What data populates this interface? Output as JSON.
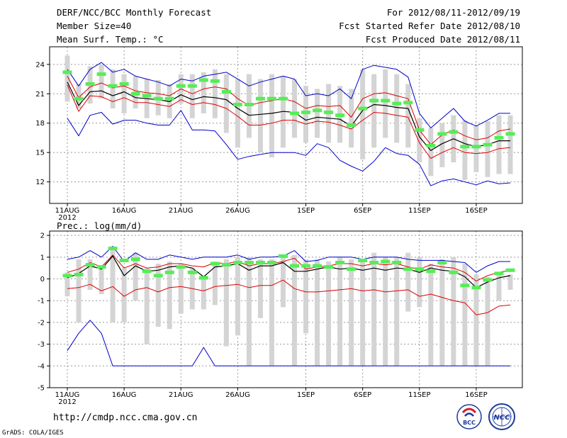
{
  "header": {
    "title": "DERF/NCC/BCC Monthly Forecast",
    "member_size": "Member Size=40",
    "variable": "Mean Surf. Temp.: °C",
    "forecast_period": "For 2012/08/11-2012/09/19",
    "refer_date": "Fcst Started Refer Date 2012/08/10",
    "produced_date": "Fcst Produced Date 2012/08/11"
  },
  "footer": {
    "url": "http://cmdp.ncc.cma.gov.cn",
    "grads_credit": "GrADS: COLA/IGES",
    "logo_left_text": "BCC",
    "logo_right_text": "NCC"
  },
  "colors": {
    "envelope": "#0000cc",
    "spread": "#dd0000",
    "mean": "#000000",
    "member_bar": "#d4d4d4",
    "green_marker": "#55ee55",
    "grid": "#999999"
  },
  "chart_data": [
    {
      "type": "line",
      "title": "Mean Surf. Temp.: °C",
      "xlabel": "",
      "ylabel": "°C",
      "ylim": [
        9.8,
        25.8
      ],
      "yticks": [
        24,
        21,
        18,
        15,
        12
      ],
      "x_tick_labels": [
        "11AUG",
        "16AUG",
        "21AUG",
        "26AUG",
        "1SEP",
        "6SEP",
        "11SEP",
        "16SEP"
      ],
      "x_tick_days": [
        0,
        5,
        10,
        15,
        21,
        26,
        31,
        36
      ],
      "year_label": "2012",
      "days": [
        0,
        1,
        2,
        3,
        4,
        5,
        6,
        7,
        8,
        9,
        10,
        11,
        12,
        13,
        14,
        15,
        16,
        17,
        18,
        19,
        20,
        21,
        22,
        23,
        24,
        25,
        26,
        27,
        28,
        29,
        30,
        31,
        32,
        33,
        34,
        35,
        36,
        37,
        38,
        39
      ],
      "series": [
        {
          "name": "max",
          "values": [
            23.5,
            21.8,
            23.5,
            24.2,
            23.2,
            23.5,
            22.8,
            22.5,
            22.2,
            21.8,
            22.5,
            22.3,
            22.8,
            23.0,
            23.2,
            22.5,
            21.8,
            22.2,
            22.5,
            22.8,
            22.5,
            20.8,
            21.0,
            20.8,
            21.5,
            20.5,
            23.5,
            23.9,
            23.7,
            23.5,
            22.7,
            19.0,
            17.5,
            18.5,
            19.5,
            18.2,
            17.7,
            18.3,
            19.0,
            19.0
          ]
        },
        {
          "name": "upper",
          "values": [
            22.8,
            20.6,
            21.7,
            22.1,
            21.6,
            21.8,
            21.3,
            21.1,
            21.0,
            20.8,
            21.5,
            21.0,
            21.5,
            21.7,
            21.5,
            20.5,
            19.8,
            20.1,
            20.3,
            20.5,
            20.2,
            19.5,
            19.8,
            19.7,
            19.8,
            18.6,
            20.5,
            21.0,
            21.1,
            20.8,
            20.5,
            17.3,
            15.8,
            16.8,
            17.3,
            16.7,
            16.3,
            16.5,
            17.2,
            17.4
          ]
        },
        {
          "name": "mean",
          "values": [
            22.2,
            19.8,
            21.2,
            21.3,
            20.8,
            21.2,
            20.6,
            20.5,
            20.4,
            20.2,
            20.9,
            20.4,
            20.7,
            20.6,
            20.4,
            19.5,
            18.8,
            18.9,
            19.0,
            19.2,
            19.1,
            18.3,
            18.6,
            18.5,
            18.4,
            17.7,
            19.3,
            19.9,
            19.8,
            19.6,
            19.5,
            16.6,
            15.2,
            15.9,
            16.4,
            15.9,
            15.6,
            15.8,
            16.2,
            16.2
          ]
        },
        {
          "name": "lower",
          "values": [
            21.9,
            19.2,
            20.8,
            20.7,
            20.2,
            20.6,
            20.1,
            20.1,
            19.9,
            19.7,
            20.4,
            19.9,
            20.1,
            19.9,
            19.5,
            18.7,
            17.8,
            17.8,
            18.0,
            18.3,
            18.3,
            17.9,
            18.2,
            18.1,
            17.8,
            17.4,
            18.3,
            19.1,
            19.0,
            18.8,
            18.6,
            16.0,
            14.4,
            15.0,
            15.5,
            15.0,
            14.9,
            15.0,
            15.4,
            15.5
          ]
        },
        {
          "name": "min",
          "values": [
            18.5,
            16.7,
            18.8,
            19.1,
            17.9,
            18.3,
            18.3,
            18.0,
            17.8,
            17.8,
            19.3,
            17.3,
            17.3,
            17.2,
            15.8,
            14.3,
            14.6,
            14.8,
            15.0,
            15.0,
            15.0,
            14.7,
            15.9,
            15.5,
            14.2,
            13.6,
            13.1,
            14.1,
            15.5,
            14.9,
            14.7,
            13.8,
            11.6,
            12.1,
            12.3,
            12.0,
            11.7,
            12.1,
            11.8,
            11.9
          ]
        }
      ],
      "member_ranges": [
        [
          20.2,
          24.9
        ],
        [
          19.5,
          22.0
        ],
        [
          20.0,
          23.8
        ],
        [
          20.5,
          24.0
        ],
        [
          19.5,
          23.5
        ],
        [
          19.0,
          23.0
        ],
        [
          19.5,
          22.8
        ],
        [
          18.5,
          22.5
        ],
        [
          18.8,
          22.4
        ],
        [
          18.5,
          22.0
        ],
        [
          20.0,
          23.0
        ],
        [
          18.5,
          23.0
        ],
        [
          19.0,
          23.2
        ],
        [
          18.5,
          23.5
        ],
        [
          17.0,
          23.0
        ],
        [
          15.5,
          22.5
        ],
        [
          16.5,
          23.0
        ],
        [
          15.0,
          22.5
        ],
        [
          14.5,
          23.0
        ],
        [
          15.5,
          22.8
        ],
        [
          16.5,
          22.5
        ],
        [
          16.0,
          21.8
        ],
        [
          16.5,
          21.5
        ],
        [
          16.0,
          22.0
        ],
        [
          16.0,
          21.8
        ],
        [
          15.5,
          21.5
        ],
        [
          14.3,
          23.5
        ],
        [
          15.5,
          23.0
        ],
        [
          16.5,
          23.5
        ],
        [
          16.0,
          23.0
        ],
        [
          15.5,
          22.0
        ],
        [
          14.0,
          18.5
        ],
        [
          12.6,
          17.5
        ],
        [
          13.5,
          18.0
        ],
        [
          14.0,
          18.8
        ],
        [
          12.2,
          18.3
        ],
        [
          13.0,
          17.7
        ],
        [
          12.5,
          18.2
        ],
        [
          12.8,
          18.8
        ],
        [
          12.8,
          18.8
        ]
      ],
      "markers": [
        23.2,
        20.5,
        22.0,
        23.0,
        21.8,
        22.0,
        21.0,
        20.8,
        20.5,
        20.5,
        21.8,
        21.8,
        22.4,
        22.3,
        21.2,
        19.9,
        19.9,
        20.5,
        20.5,
        20.5,
        19.0,
        19.1,
        19.3,
        19.1,
        18.8,
        17.8,
        19.5,
        20.3,
        20.3,
        20.0,
        20.1,
        17.3,
        15.7,
        16.9,
        17.1,
        15.6,
        15.6,
        15.8,
        16.5,
        16.9
      ]
    },
    {
      "type": "line",
      "title": "Prec.: log(mm/d)",
      "xlabel": "",
      "ylabel": "log(mm/d)",
      "ylim": [
        -5,
        2.2
      ],
      "yticks": [
        2,
        1,
        0,
        -1,
        -2,
        -3,
        -4,
        -5
      ],
      "x_tick_labels": [
        "11AUG",
        "16AUG",
        "21AUG",
        "26AUG",
        "1SEP",
        "6SEP",
        "11SEP",
        "16SEP"
      ],
      "x_tick_days": [
        0,
        5,
        10,
        15,
        21,
        26,
        31,
        36
      ],
      "year_label": "2012",
      "days": [
        0,
        1,
        2,
        3,
        4,
        5,
        6,
        7,
        8,
        9,
        10,
        11,
        12,
        13,
        14,
        15,
        16,
        17,
        18,
        19,
        20,
        21,
        22,
        23,
        24,
        25,
        26,
        27,
        28,
        29,
        30,
        31,
        32,
        33,
        34,
        35,
        36,
        37,
        38,
        39
      ],
      "series": [
        {
          "name": "max",
          "values": [
            0.9,
            1.0,
            1.3,
            1.0,
            1.5,
            0.8,
            1.2,
            0.9,
            0.9,
            1.1,
            1.0,
            0.9,
            1.0,
            1.0,
            1.0,
            1.1,
            0.9,
            1.0,
            1.0,
            1.05,
            1.3,
            0.8,
            0.85,
            1.0,
            1.0,
            1.0,
            0.9,
            1.0,
            1.0,
            1.0,
            0.9,
            0.85,
            0.85,
            0.85,
            0.8,
            0.75,
            0.3,
            0.6,
            0.8,
            0.8
          ]
        },
        {
          "name": "upper",
          "values": [
            0.3,
            0.45,
            0.75,
            0.55,
            1.1,
            0.5,
            0.7,
            0.5,
            0.55,
            0.7,
            0.7,
            0.6,
            0.55,
            0.75,
            0.7,
            0.8,
            0.6,
            0.7,
            0.7,
            0.8,
            0.95,
            0.45,
            0.55,
            0.6,
            0.7,
            0.7,
            0.6,
            0.7,
            0.65,
            0.7,
            0.55,
            0.45,
            0.65,
            0.55,
            0.5,
            0.3,
            -0.1,
            0.15,
            0.3,
            0.4
          ]
        },
        {
          "name": "mean",
          "values": [
            0.05,
            0.25,
            0.6,
            0.45,
            1.05,
            0.15,
            0.6,
            0.35,
            0.4,
            0.55,
            0.6,
            0.5,
            0.1,
            0.55,
            0.6,
            0.7,
            0.4,
            0.6,
            0.6,
            0.75,
            0.35,
            0.35,
            0.45,
            0.55,
            0.45,
            0.5,
            0.4,
            0.5,
            0.4,
            0.5,
            0.45,
            0.3,
            0.5,
            0.4,
            0.35,
            0.1,
            -0.4,
            -0.15,
            0.05,
            0.15
          ]
        },
        {
          "name": "lower",
          "values": [
            -0.45,
            -0.4,
            -0.25,
            -0.55,
            -0.35,
            -0.8,
            -0.5,
            -0.4,
            -0.6,
            -0.4,
            -0.35,
            -0.45,
            -0.55,
            -0.35,
            -0.3,
            -0.25,
            -0.4,
            -0.3,
            -0.3,
            -0.05,
            -0.45,
            -0.6,
            -0.6,
            -0.55,
            -0.5,
            -0.45,
            -0.55,
            -0.5,
            -0.6,
            -0.55,
            -0.5,
            -0.8,
            -0.7,
            -0.85,
            -1.0,
            -1.1,
            -1.65,
            -1.55,
            -1.25,
            -1.2
          ]
        },
        {
          "name": "min",
          "values": [
            -3.3,
            -2.5,
            -1.9,
            -2.5,
            -4.0,
            -4.0,
            -4.0,
            -4.0,
            -4.0,
            -4.0,
            -4.0,
            -4.0,
            -3.15,
            -4.0,
            -4.0,
            -4.0,
            -4.0,
            -4.0,
            -4.0,
            -4.0,
            -4.0,
            -4.0,
            -4.0,
            -4.0,
            -4.0,
            -4.0,
            -4.0,
            -4.0,
            -4.0,
            -4.0,
            -4.0,
            -4.0,
            -4.0,
            -4.0,
            -4.0,
            -4.0,
            -4.0,
            -4.0,
            -4.0,
            -4.0
          ]
        }
      ],
      "member_ranges": [
        [
          -0.8,
          0.3
        ],
        [
          -2.0,
          0.9
        ],
        [
          -0.5,
          0.9
        ],
        [
          -0.7,
          0.5
        ],
        [
          -2.0,
          1.5
        ],
        [
          -2.0,
          0.5
        ],
        [
          -1.0,
          1.2
        ],
        [
          -3.0,
          0.5
        ],
        [
          -2.2,
          0.7
        ],
        [
          -2.3,
          0.8
        ],
        [
          -1.6,
          0.7
        ],
        [
          -1.4,
          0.5
        ],
        [
          -1.4,
          0.0
        ],
        [
          -1.2,
          0.8
        ],
        [
          -3.1,
          0.9
        ],
        [
          -2.6,
          1.0
        ],
        [
          -4.0,
          1.0
        ],
        [
          -1.8,
          0.9
        ],
        [
          -4.0,
          0.9
        ],
        [
          -1.3,
          1.0
        ],
        [
          -4.0,
          1.1
        ],
        [
          -2.5,
          0.9
        ],
        [
          -4.0,
          0.9
        ],
        [
          -4.0,
          0.8
        ],
        [
          -4.0,
          1.0
        ],
        [
          -4.0,
          0.9
        ],
        [
          -4.0,
          0.8
        ],
        [
          -4.0,
          1.2
        ],
        [
          -4.0,
          1.0
        ],
        [
          -4.0,
          1.0
        ],
        [
          -1.5,
          1.2
        ],
        [
          -1.3,
          1.0
        ],
        [
          -4.0,
          0.7
        ],
        [
          -4.0,
          0.9
        ],
        [
          -4.0,
          1.0
        ],
        [
          -4.0,
          0.7
        ],
        [
          -4.0,
          0.2
        ],
        [
          -4.0,
          0.1
        ],
        [
          -1.0,
          0.3
        ],
        [
          -0.5,
          0.2
        ]
      ],
      "markers": [
        0.15,
        0.2,
        0.65,
        0.55,
        1.4,
        0.85,
        0.9,
        0.35,
        0.15,
        0.3,
        0.55,
        0.3,
        0.05,
        0.7,
        0.65,
        0.75,
        0.75,
        0.75,
        0.75,
        1.05,
        0.6,
        0.6,
        0.6,
        0.55,
        0.75,
        0.45,
        0.85,
        0.75,
        0.8,
        0.75,
        0.45,
        0.45,
        0.35,
        0.75,
        0.3,
        -0.3,
        -0.4,
        -0.05,
        0.25,
        0.4
      ]
    }
  ]
}
